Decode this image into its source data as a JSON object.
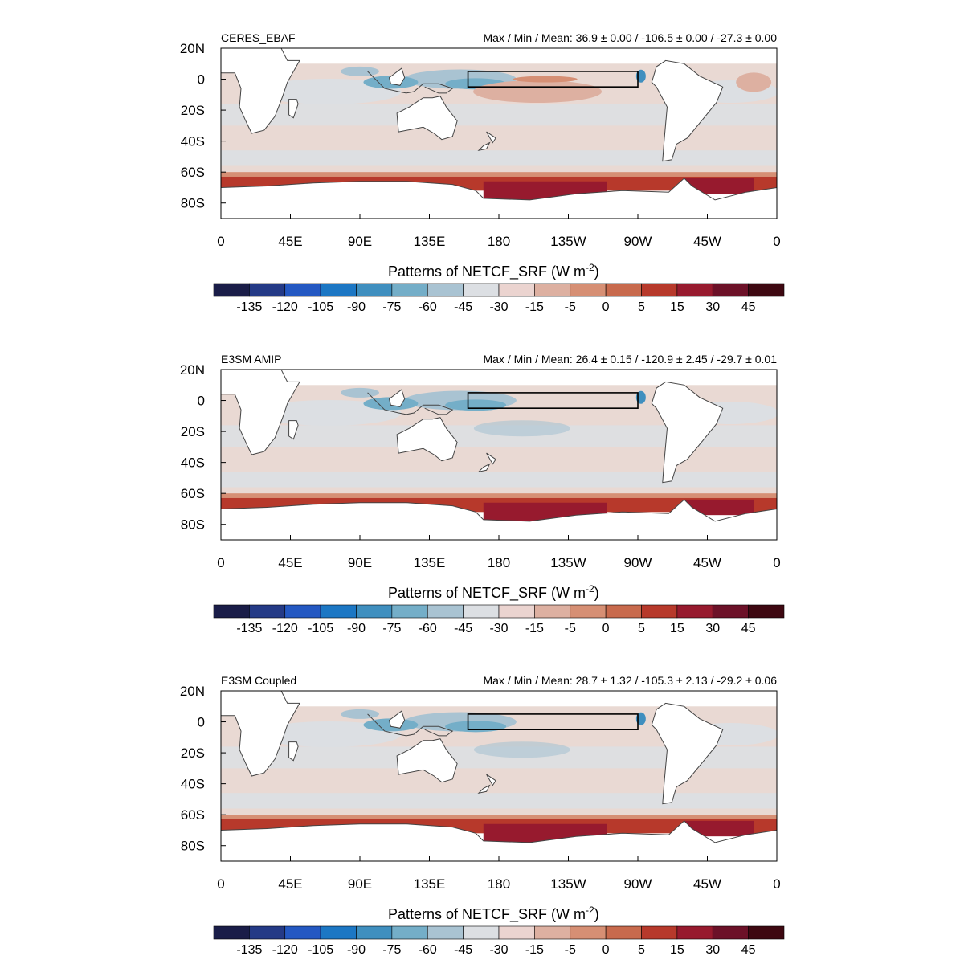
{
  "figure": {
    "panels": [
      {
        "title": "CERES_EBAF",
        "stats": "Max / Min / Mean:  36.9 ± 0.00 / -106.5 ± 0.00 / -27.3 ± 0.00",
        "colorbar_title": "Patterns of NETCF_SRF (W m",
        "colorbar_unit_exp": "-2",
        "colorbar_title_close": ")"
      },
      {
        "title": "E3SM AMIP",
        "stats": "Max / Min / Mean:  26.4 ± 0.15 / -120.9 ± 2.45 / -29.7 ± 0.01",
        "colorbar_title": "Patterns of NETCF_SRF (W m",
        "colorbar_unit_exp": "-2",
        "colorbar_title_close": ")"
      },
      {
        "title": "E3SM Coupled",
        "stats": "Max / Min / Mean:  28.7 ± 1.32 / -105.3 ± 2.13 / -29.2 ± 0.06",
        "colorbar_title": "Patterns of NETCF_SRF (W m",
        "colorbar_unit_exp": "-2",
        "colorbar_title_close": ")"
      }
    ],
    "lat_labels": [
      "20N",
      "0",
      "20S",
      "40S",
      "60S",
      "80S"
    ],
    "lon_labels": [
      "0",
      "45E",
      "90E",
      "135E",
      "180",
      "135W",
      "90W",
      "45W",
      "0"
    ],
    "colorbar_labels": [
      "-135",
      "-120",
      "-105",
      "-90",
      "-75",
      "-60",
      "-45",
      "-30",
      "-15",
      "-5",
      "0",
      "5",
      "15",
      "30",
      "45"
    ],
    "colorbar_colors": [
      "#1a1d48",
      "#243a86",
      "#2458c2",
      "#1c77c4",
      "#3f8fbf",
      "#74aec8",
      "#a9c3d2",
      "#dcdfe3",
      "#ebd4d0",
      "#ddb0a1",
      "#d68f74",
      "#c86a4d",
      "#b7392b",
      "#971a2e",
      "#6c1128",
      "#3e0811"
    ],
    "ocean_colors": {
      "base": "#e9d9d3",
      "neutral": "#dcdfe3",
      "light_blue": "#a9c3d2",
      "mid_blue": "#74aec8",
      "deep_blue": "#3f8fbf",
      "light_red": "#ddb0a1",
      "orange": "#d68f74",
      "red": "#b7392b",
      "dark_red": "#971a2e"
    },
    "chart_data": [
      {
        "type": "heatmap",
        "title": "CERES_EBAF",
        "variable": "NETCF_SRF",
        "units": "W m-2",
        "max": 36.9,
        "min": -106.5,
        "mean": -27.3,
        "lon_ticks": [
          "0",
          "45E",
          "90E",
          "135E",
          "180",
          "135W",
          "90W",
          "45W",
          "0"
        ],
        "lat_ticks": [
          "20N",
          "0",
          "20S",
          "40S",
          "60S",
          "80S"
        ],
        "lat_range": [
          -90,
          20
        ],
        "lon_range": [
          0,
          360
        ],
        "box": {
          "lon": [
            160,
            270
          ],
          "lat": [
            -5,
            5
          ]
        }
      },
      {
        "type": "heatmap",
        "title": "E3SM AMIP",
        "variable": "NETCF_SRF",
        "units": "W m-2",
        "max": 26.4,
        "min": -120.9,
        "mean": -29.7,
        "lon_ticks": [
          "0",
          "45E",
          "90E",
          "135E",
          "180",
          "135W",
          "90W",
          "45W",
          "0"
        ],
        "lat_ticks": [
          "20N",
          "0",
          "20S",
          "40S",
          "60S",
          "80S"
        ],
        "lat_range": [
          -90,
          20
        ],
        "lon_range": [
          0,
          360
        ],
        "box": {
          "lon": [
            160,
            270
          ],
          "lat": [
            -5,
            5
          ]
        }
      },
      {
        "type": "heatmap",
        "title": "E3SM Coupled",
        "variable": "NETCF_SRF",
        "units": "W m-2",
        "max": 28.7,
        "min": -105.3,
        "mean": -29.2,
        "lon_ticks": [
          "0",
          "45E",
          "90E",
          "135E",
          "180",
          "135W",
          "90W",
          "45W",
          "0"
        ],
        "lat_ticks": [
          "20N",
          "0",
          "20S",
          "40S",
          "60S",
          "80S"
        ],
        "lat_range": [
          -90,
          20
        ],
        "lon_range": [
          0,
          360
        ],
        "box": {
          "lon": [
            160,
            270
          ],
          "lat": [
            -5,
            5
          ]
        }
      }
    ]
  }
}
